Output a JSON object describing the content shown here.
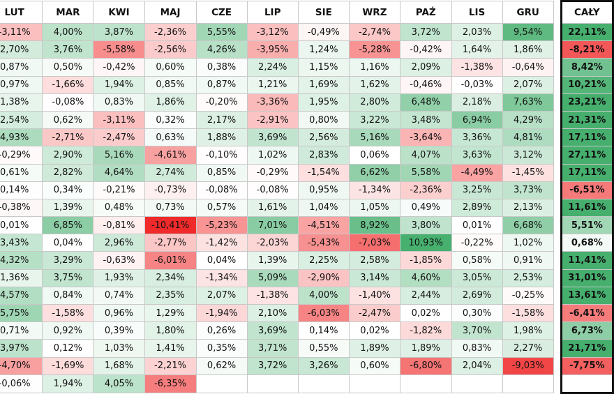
{
  "columns": [
    "LUT",
    "MAR",
    "KWI",
    "MAJ",
    "CZE",
    "LIP",
    "SIE",
    "WRZ",
    "PAŹ",
    "LIS",
    "GRU",
    "CAŁY"
  ],
  "total_label": "CAŁY",
  "rows": [
    [
      "-3,11%",
      "4,00%",
      "3,87%",
      "-2,36%",
      "5,55%",
      "-3,12%",
      "-0,49%",
      "-2,74%",
      "3,72%",
      "2,03%",
      "9,54%",
      "22,11%"
    ],
    [
      "2,70%",
      "3,76%",
      "-5,58%",
      "-2,56%",
      "4,26%",
      "-3,95%",
      "1,24%",
      "-5,28%",
      "-0,42%",
      "1,64%",
      "1,86%",
      "-8,21%"
    ],
    [
      "0,87%",
      "0,50%",
      "-0,42%",
      "0,60%",
      "0,38%",
      "2,24%",
      "1,15%",
      "1,16%",
      "2,09%",
      "-1,38%",
      "-0,64%",
      "8,42%"
    ],
    [
      "0,97%",
      "-1,66%",
      "1,94%",
      "0,85%",
      "0,87%",
      "1,21%",
      "1,69%",
      "1,62%",
      "-0,46%",
      "-0,03%",
      "2,07%",
      "10,21%"
    ],
    [
      "1,38%",
      "-0,08%",
      "0,83%",
      "1,86%",
      "-0,20%",
      "-3,36%",
      "1,95%",
      "2,80%",
      "6,48%",
      "2,18%",
      "7,63%",
      "23,21%"
    ],
    [
      "2,54%",
      "0,62%",
      "-3,11%",
      "0,32%",
      "2,17%",
      "-2,91%",
      "0,80%",
      "3,22%",
      "3,48%",
      "6,94%",
      "4,29%",
      "21,31%"
    ],
    [
      "4,93%",
      "-2,71%",
      "-2,47%",
      "0,63%",
      "1,88%",
      "3,69%",
      "2,56%",
      "5,16%",
      "-3,64%",
      "3,36%",
      "4,81%",
      "17,11%"
    ],
    [
      "-0,29%",
      "2,90%",
      "5,16%",
      "-4,61%",
      "-0,10%",
      "1,02%",
      "2,83%",
      "0,06%",
      "4,07%",
      "3,63%",
      "3,12%",
      "27,11%"
    ],
    [
      "0,61%",
      "2,82%",
      "4,64%",
      "2,74%",
      "0,85%",
      "-0,29%",
      "-1,54%",
      "6,62%",
      "5,58%",
      "-4,49%",
      "-1,45%",
      "17,11%"
    ],
    [
      "0,14%",
      "0,34%",
      "-0,21%",
      "-0,73%",
      "-0,08%",
      "-0,08%",
      "0,95%",
      "-1,34%",
      "-2,36%",
      "3,25%",
      "3,73%",
      "-6,51%"
    ],
    [
      "-0,38%",
      "1,39%",
      "0,48%",
      "0,73%",
      "0,57%",
      "1,61%",
      "1,04%",
      "1,05%",
      "0,49%",
      "2,89%",
      "2,13%",
      "11,61%"
    ],
    [
      "0,01%",
      "6,85%",
      "-0,81%",
      "-10,41%",
      "-5,23%",
      "7,01%",
      "-4,51%",
      "8,92%",
      "3,80%",
      "0,01%",
      "6,68%",
      "5,51%"
    ],
    [
      "3,43%",
      "0,04%",
      "2,96%",
      "-2,77%",
      "-1,42%",
      "-2,03%",
      "-5,43%",
      "-7,03%",
      "10,93%",
      "-0,22%",
      "1,02%",
      "0,68%"
    ],
    [
      "4,32%",
      "3,29%",
      "-0,63%",
      "-6,01%",
      "0,04%",
      "1,39%",
      "2,25%",
      "2,58%",
      "-1,85%",
      "0,58%",
      "0,91%",
      "11,41%"
    ],
    [
      "1,36%",
      "3,75%",
      "1,93%",
      "2,34%",
      "-1,34%",
      "5,09%",
      "-2,90%",
      "3,14%",
      "4,60%",
      "3,05%",
      "2,53%",
      "31,01%"
    ],
    [
      "4,57%",
      "0,84%",
      "0,74%",
      "2,35%",
      "2,07%",
      "-1,38%",
      "4,00%",
      "-1,40%",
      "2,44%",
      "2,69%",
      "-0,25%",
      "13,61%"
    ],
    [
      "5,75%",
      "-1,58%",
      "0,96%",
      "1,29%",
      "-1,94%",
      "2,10%",
      "-6,03%",
      "-2,47%",
      "0,02%",
      "0,30%",
      "-1,58%",
      "-6,41%"
    ],
    [
      "0,71%",
      "0,92%",
      "0,39%",
      "1,80%",
      "0,26%",
      "3,69%",
      "0,14%",
      "0,02%",
      "-1,82%",
      "3,70%",
      "1,98%",
      "6,73%"
    ],
    [
      "3,97%",
      "0,12%",
      "1,03%",
      "1,41%",
      "0,35%",
      "3,71%",
      "0,55%",
      "1,89%",
      "1,89%",
      "0,83%",
      "2,27%",
      "21,71%"
    ],
    [
      "-4,70%",
      "-1,69%",
      "1,68%",
      "-2,21%",
      "0,62%",
      "3,72%",
      "3,26%",
      "0,60%",
      "-6,80%",
      "2,04%",
      "-9,03%",
      "-7,75%"
    ],
    [
      "-0,06%",
      "1,94%",
      "4,05%",
      "-6,35%",
      "",
      "",
      "",
      "",
      "",
      "",
      "",
      ""
    ]
  ]
}
